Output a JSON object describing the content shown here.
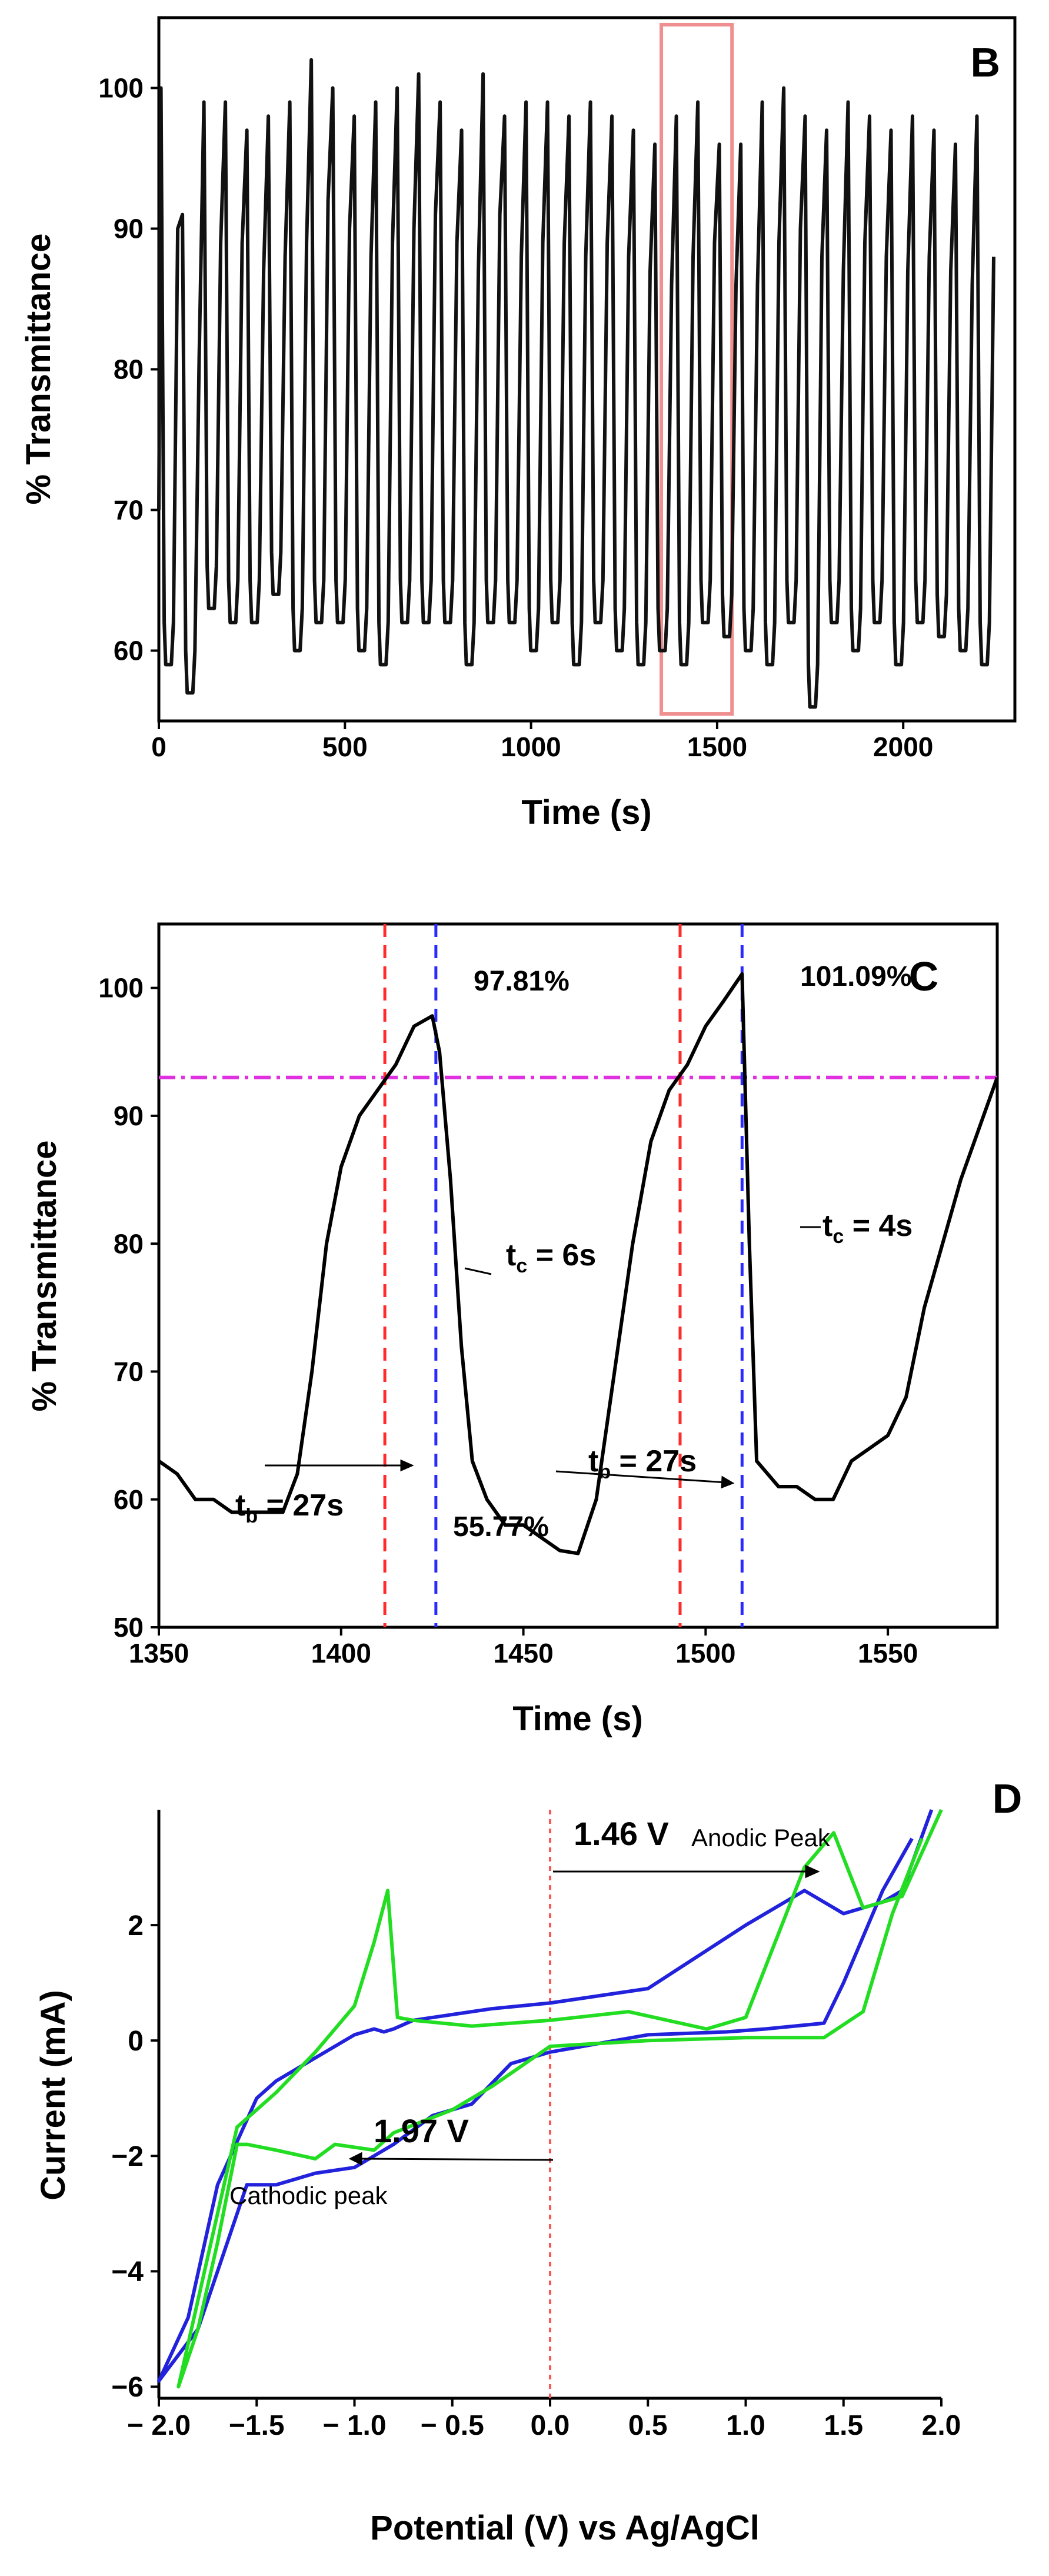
{
  "chart_data": [
    {
      "panel_label": "B",
      "type": "line",
      "xlabel": "Time (s)",
      "ylabel": "% Transmittance",
      "xlim": [
        0,
        2300
      ],
      "ylim": [
        55,
        105
      ],
      "xticks": [
        0,
        500,
        1000,
        1500,
        2000
      ],
      "yticks": [
        60,
        70,
        80,
        90,
        100
      ],
      "cycle_maxima": [
        100,
        91,
        99,
        99,
        97,
        98,
        99,
        102,
        100,
        98,
        99,
        100,
        101,
        99,
        97,
        101,
        98,
        99,
        99,
        98,
        99,
        98,
        97,
        96,
        98,
        99,
        96,
        96,
        99,
        100,
        98,
        97,
        99,
        98,
        97,
        98,
        97,
        96,
        98
      ],
      "cycle_minima": [
        59,
        57,
        63,
        62,
        62,
        64,
        60,
        62,
        62,
        60,
        59,
        62,
        62,
        62,
        59,
        62,
        62,
        60,
        62,
        59,
        62,
        60,
        59,
        60,
        59,
        62,
        61,
        60,
        59,
        62,
        56,
        62,
        60,
        62,
        59,
        62,
        61,
        60,
        59
      ],
      "series": [
        {
          "color": "#111111"
        }
      ],
      "highlight": {
        "xlim": [
          1350,
          1540
        ],
        "ylim": [
          55.5,
          104.5
        ],
        "color": "#ef8f8f"
      },
      "grid": false
    },
    {
      "panel_label": "C",
      "type": "line",
      "xlabel": "Time (s)",
      "ylabel": "% Transmittance",
      "xlim": [
        1350,
        1580
      ],
      "ylim": [
        50,
        105
      ],
      "xticks": [
        1350,
        1400,
        1450,
        1500,
        1550
      ],
      "yticks": [
        50,
        60,
        70,
        80,
        90,
        100
      ],
      "series": [
        {
          "color": "#000000",
          "x": [
            1350,
            1355,
            1360,
            1365,
            1370,
            1375,
            1380,
            1384,
            1388,
            1392,
            1396,
            1400,
            1405,
            1410,
            1415,
            1420,
            1425,
            1427,
            1430,
            1433,
            1436,
            1440,
            1445,
            1450,
            1455,
            1460,
            1465,
            1470,
            1475,
            1480,
            1485,
            1490,
            1495,
            1500,
            1505,
            1510,
            1512,
            1514,
            1520,
            1525,
            1530,
            1535,
            1540,
            1545,
            1550,
            1555,
            1560,
            1565,
            1570,
            1575,
            1580
          ],
          "y": [
            63,
            62,
            60,
            60,
            59,
            59,
            59,
            59,
            62,
            70,
            80,
            86,
            90,
            92,
            94,
            97,
            97.81,
            95,
            85,
            72,
            63,
            60,
            58,
            58,
            57,
            56,
            55.77,
            60,
            70,
            80,
            88,
            92,
            94,
            97,
            99,
            101.09,
            80,
            63,
            61,
            61,
            60,
            60,
            63,
            64,
            65,
            68,
            75,
            80,
            85,
            89,
            93
          ]
        }
      ],
      "vlines": [
        {
          "x": 1412,
          "color": "#ff2a2a"
        },
        {
          "x": 1426,
          "color": "#2a2aff"
        },
        {
          "x": 1493,
          "color": "#ff2a2a"
        },
        {
          "x": 1510,
          "color": "#2a2aff"
        }
      ],
      "hline": {
        "y": 93,
        "color": "#e030e0"
      },
      "annotations": {
        "peak1": "97.81%",
        "peak2": "101.09%",
        "min": "55.77%",
        "tc1": "6s",
        "tc2": "4s",
        "tb1": "27s",
        "tb2": "27s",
        "t_prefix": "t",
        "sub_c": "c",
        "sub_b": "b",
        "eq": " = "
      },
      "grid": false
    },
    {
      "panel_label": "D",
      "type": "line",
      "xlabel": "Potential (V) vs Ag/AgCl",
      "ylabel": "Current (mA)",
      "xlim": [
        -2.0,
        2.0
      ],
      "ylim": [
        -6.2,
        4.0
      ],
      "xticks": [
        -2.0,
        -1.5,
        -1.0,
        -0.5,
        0.0,
        0.5,
        1.0,
        1.5,
        2.0
      ],
      "xtick_labels": [
        "− 2.0",
        "−1.5",
        "− 1.0",
        "− 0.5",
        "0.0",
        "0.5",
        "1.0",
        "1.5",
        "2.0"
      ],
      "yticks": [
        -6,
        -4,
        -2,
        0,
        2
      ],
      "ytick_labels": [
        "−6",
        "−4",
        "−2",
        "0",
        "2"
      ],
      "series": [
        {
          "color": "#2222dd",
          "x": [
            1.95,
            1.8,
            1.7,
            1.5,
            1.3,
            1.0,
            0.5,
            0.0,
            -0.3,
            -0.5,
            -0.7,
            -0.8,
            -0.85,
            -0.9,
            -1.0,
            -1.2,
            -1.4,
            -1.5,
            -1.7,
            -1.85,
            -2.0,
            -1.8,
            -1.65,
            -1.55,
            -1.4,
            -1.2,
            -1.0,
            -0.8,
            -0.6,
            -0.4,
            -0.2,
            0.0,
            0.5,
            0.9,
            1.1,
            1.25,
            1.4,
            1.5,
            1.7,
            1.85
          ],
          "y": [
            4.0,
            2.6,
            2.4,
            2.2,
            2.6,
            2.0,
            0.9,
            0.65,
            0.55,
            0.45,
            0.35,
            0.2,
            0.15,
            0.2,
            0.1,
            -0.3,
            -0.7,
            -1.0,
            -2.5,
            -4.8,
            -5.9,
            -5.0,
            -3.5,
            -2.5,
            -2.5,
            -2.3,
            -2.2,
            -1.8,
            -1.3,
            -1.1,
            -0.4,
            -0.2,
            0.1,
            0.15,
            0.2,
            0.25,
            0.3,
            1.0,
            2.6,
            3.5
          ]
        },
        {
          "color": "#22dd22",
          "x": [
            2.0,
            1.8,
            1.7,
            1.6,
            1.45,
            1.3,
            1.0,
            0.8,
            0.4,
            0.0,
            -0.4,
            -0.7,
            -0.78,
            -0.83,
            -0.9,
            -1.0,
            -1.2,
            -1.4,
            -1.6,
            -1.8,
            -1.9,
            -1.8,
            -1.7,
            -1.6,
            -1.55,
            -1.4,
            -1.2,
            -1.1,
            -0.9,
            -0.8,
            -0.5,
            -0.3,
            0.0,
            0.5,
            1.0,
            1.4,
            1.6,
            1.75,
            1.9
          ],
          "y": [
            4.0,
            2.5,
            2.4,
            2.3,
            3.6,
            3.0,
            0.4,
            0.2,
            0.5,
            0.35,
            0.25,
            0.35,
            0.4,
            2.6,
            1.7,
            0.6,
            -0.2,
            -0.9,
            -1.5,
            -4.5,
            -6.0,
            -5.0,
            -3.5,
            -1.8,
            -1.8,
            -1.9,
            -2.05,
            -1.8,
            -1.9,
            -1.6,
            -1.2,
            -0.8,
            -0.1,
            0.0,
            0.05,
            0.05,
            0.5,
            2.2,
            3.5
          ]
        }
      ],
      "vline": {
        "x": 0.0,
        "color": "#ff5555"
      },
      "annotations": {
        "anodic_value": "1.46 V",
        "anodic_label": "Anodic Peak",
        "cathodic_value": "1.97 V",
        "cathodic_label": "Cathodic peak"
      },
      "grid": false
    }
  ]
}
